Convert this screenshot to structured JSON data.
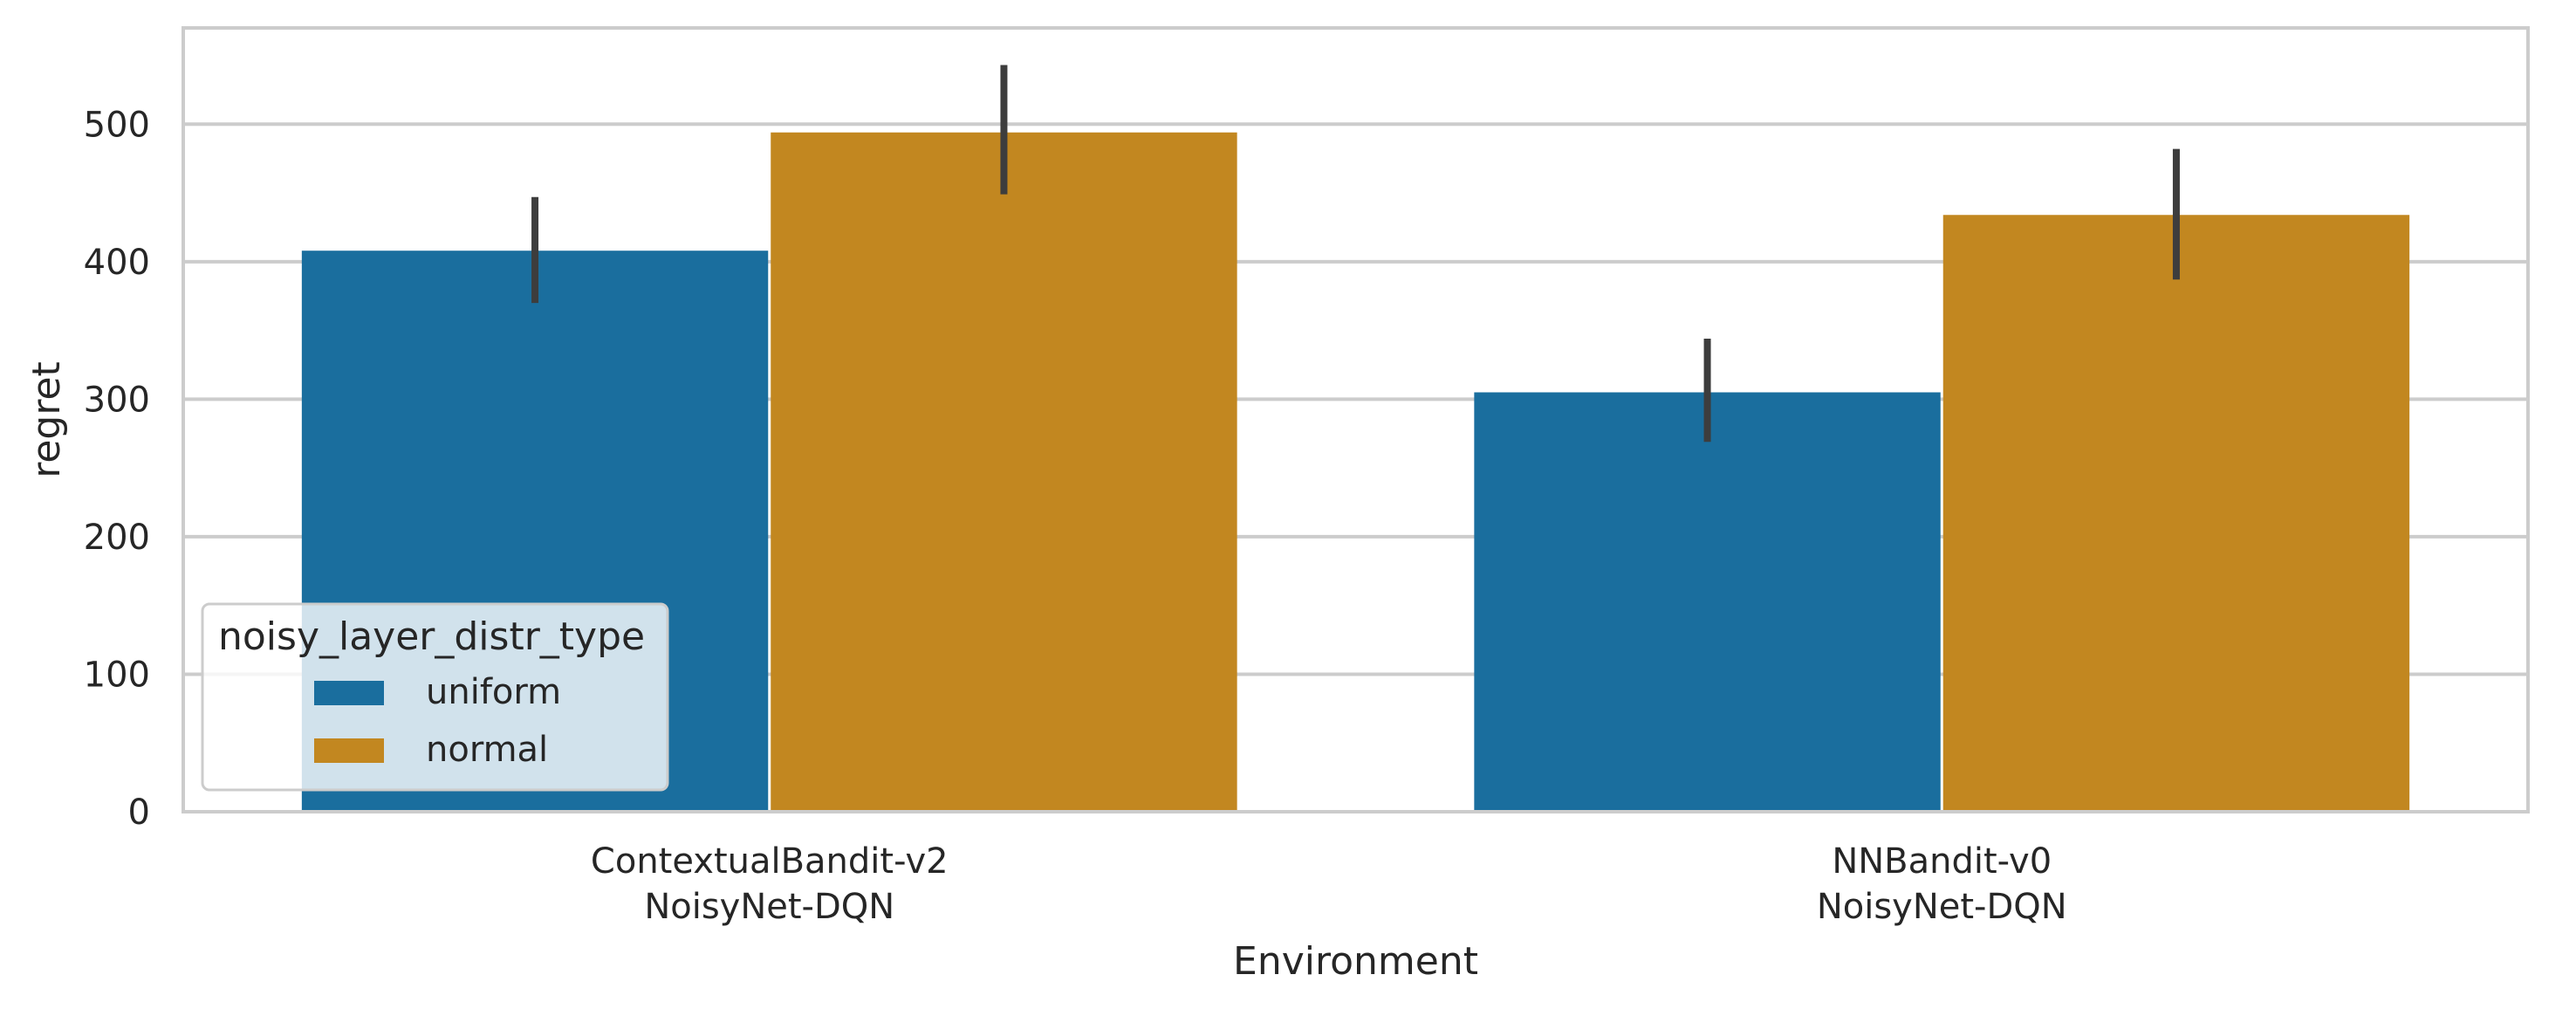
{
  "chart_data": {
    "type": "bar",
    "categories": [
      "ContextualBandit-v2\nNoisyNet-DQN",
      "NNBandit-v0\nNoisyNet-DQN"
    ],
    "series": [
      {
        "name": "uniform",
        "values": [
          408,
          305
        ],
        "ci": [
          [
            370,
            447
          ],
          [
            269,
            344
          ]
        ]
      },
      {
        "name": "normal",
        "values": [
          494,
          434
        ],
        "ci": [
          [
            449,
            543
          ],
          [
            387,
            482
          ]
        ]
      }
    ],
    "xlabel": "Environment",
    "ylabel": "regret",
    "ylim": [
      0,
      570
    ],
    "yticks": [
      0,
      100,
      200,
      300,
      400,
      500
    ],
    "grid": "horizontal",
    "legend": {
      "title": "noisy_layer_distr_type",
      "placement": "lower-left"
    },
    "colors": {
      "uniform": "#1a6e9e",
      "normal": "#c28720",
      "errorbar": "#3d3d3d",
      "grid": "#cccccc",
      "frame": "#cccccc"
    }
  }
}
